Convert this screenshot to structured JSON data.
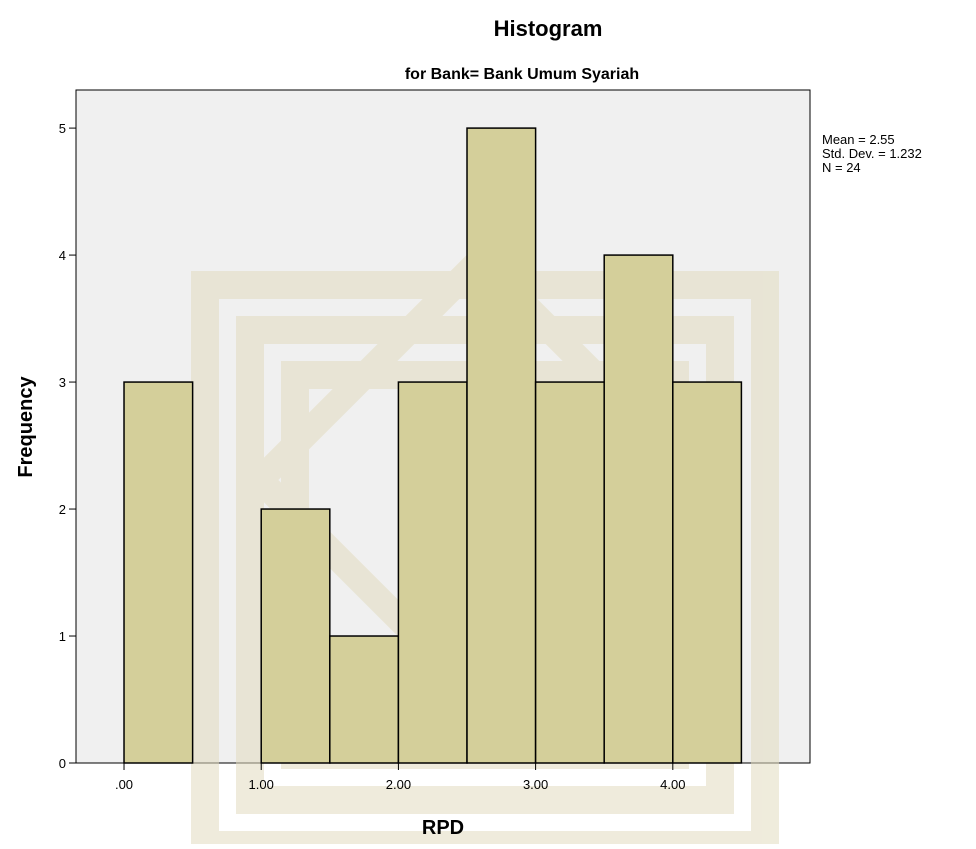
{
  "chart_data": {
    "type": "bar",
    "title": "Histogram",
    "subtitle": "for Bank= Bank Umum Syariah",
    "xlabel": "RPD",
    "ylabel": "Frequency",
    "bins": [
      {
        "start": 0.0,
        "end": 0.5,
        "count": 3
      },
      {
        "start": 1.0,
        "end": 1.5,
        "count": 2
      },
      {
        "start": 1.5,
        "end": 2.0,
        "count": 1
      },
      {
        "start": 2.0,
        "end": 2.5,
        "count": 3
      },
      {
        "start": 2.5,
        "end": 3.0,
        "count": 5
      },
      {
        "start": 3.0,
        "end": 3.5,
        "count": 3
      },
      {
        "start": 3.5,
        "end": 4.0,
        "count": 4
      },
      {
        "start": 4.0,
        "end": 4.5,
        "count": 3
      }
    ],
    "xlim": [
      -0.35,
      5.0
    ],
    "ylim": [
      0,
      5.3
    ],
    "x_ticks": [
      {
        "value": 0,
        "label": ".00"
      },
      {
        "value": 1,
        "label": "1.00"
      },
      {
        "value": 2,
        "label": "2.00"
      },
      {
        "value": 3,
        "label": "3.00"
      },
      {
        "value": 4,
        "label": "4.00"
      }
    ],
    "y_ticks": [
      {
        "value": 0,
        "label": "0"
      },
      {
        "value": 1,
        "label": "1"
      },
      {
        "value": 2,
        "label": "2"
      },
      {
        "value": 3,
        "label": "3"
      },
      {
        "value": 4,
        "label": "4"
      },
      {
        "value": 5,
        "label": "5"
      }
    ],
    "stats": [
      "Mean = 2.55",
      "Std. Dev. = 1.232",
      "N = 24"
    ],
    "grid": false,
    "colors": {
      "bar_fill": "#d4cf9a",
      "bar_stroke": "#000000",
      "plot_background": "#f0f0f0",
      "watermark": "#e2dcc0"
    }
  }
}
